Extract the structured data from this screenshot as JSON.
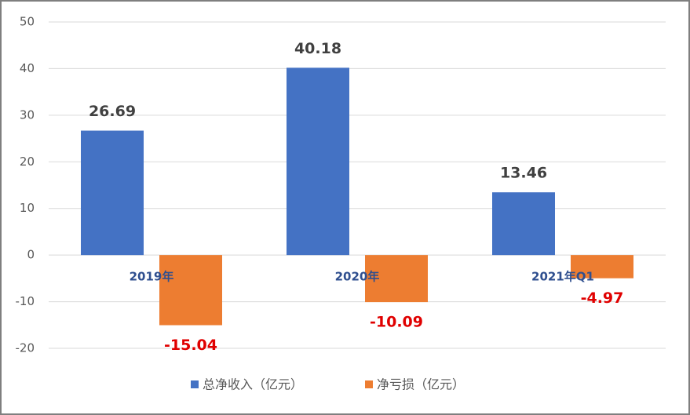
{
  "chart_data": {
    "type": "bar",
    "categories": [
      "2019年",
      "2020年",
      "2021年Q1"
    ],
    "series": [
      {
        "name": "总净收入（亿元）",
        "color": "#4472c4",
        "values": [
          26.69,
          40.18,
          13.46
        ]
      },
      {
        "name": "净亏损（亿元）",
        "color": "#ed7d31",
        "values": [
          -15.04,
          -10.09,
          -4.97
        ]
      }
    ],
    "value_label_colors": [
      "#404040",
      "#e00000"
    ],
    "ylim": [
      -20,
      50
    ],
    "yticks": [
      -20,
      -10,
      0,
      10,
      20,
      30,
      40,
      50
    ],
    "grid": true,
    "legend": "bottom"
  }
}
